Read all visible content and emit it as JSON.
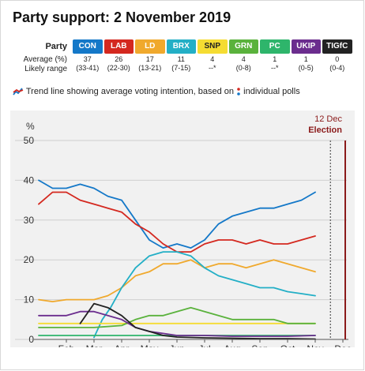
{
  "title": "Party support: 2 November 2019",
  "table": {
    "row_party_label": "Party",
    "row_average_label": "Average (%)",
    "row_range_label": "Likely range",
    "parties": [
      {
        "name": "CON",
        "color": "#1478c8",
        "average": "37",
        "range": "(33-41)"
      },
      {
        "name": "LAB",
        "color": "#d4281f",
        "average": "26",
        "range": "(22-30)"
      },
      {
        "name": "LD",
        "color": "#f0a92d",
        "average": "17",
        "range": "(13-21)"
      },
      {
        "name": "BRX",
        "color": "#23afc6",
        "average": "11",
        "range": "(7-15)"
      },
      {
        "name": "SNP",
        "color": "#f5dc32",
        "average": "4",
        "range": "--*"
      },
      {
        "name": "GRN",
        "color": "#5ab23c",
        "average": "4",
        "range": "(0-8)"
      },
      {
        "name": "PC",
        "color": "#2eb56b",
        "average": "1",
        "range": "--*"
      },
      {
        "name": "UKIP",
        "color": "#6b2d8e",
        "average": "1",
        "range": "(0-5)"
      },
      {
        "name": "TIGfC",
        "color": "#222222",
        "average": "0",
        "range": "(0-4)"
      }
    ]
  },
  "legend": {
    "text_before": "Trend line showing average voting intention, based on",
    "text_after": "individual polls"
  },
  "chart_data": {
    "type": "line",
    "ylabel": "%",
    "ylim": [
      0,
      50
    ],
    "yticks": [
      0,
      10,
      20,
      30,
      40,
      50
    ],
    "x_labels": [
      "Feb",
      "Mar",
      "Apr",
      "May",
      "Jun",
      "Jul",
      "Aug",
      "Sep",
      "Oct",
      "Nov",
      "Dec"
    ],
    "x_range_months": [
      1,
      12.2
    ],
    "grid": true,
    "election_label_date": "12 Dec",
    "election_label": "Election",
    "election_month": 11.55,
    "series": [
      {
        "name": "CON",
        "color": "#1478c8",
        "points": [
          [
            1,
            40
          ],
          [
            1.5,
            38
          ],
          [
            2,
            38
          ],
          [
            2.5,
            39
          ],
          [
            3,
            38
          ],
          [
            3.5,
            36
          ],
          [
            4,
            35
          ],
          [
            4.5,
            30
          ],
          [
            5,
            25
          ],
          [
            5.5,
            23
          ],
          [
            6,
            24
          ],
          [
            6.5,
            23
          ],
          [
            7,
            25
          ],
          [
            7.5,
            29
          ],
          [
            8,
            31
          ],
          [
            8.5,
            32
          ],
          [
            9,
            33
          ],
          [
            9.5,
            33
          ],
          [
            10,
            34
          ],
          [
            10.5,
            35
          ],
          [
            11,
            37
          ]
        ]
      },
      {
        "name": "LAB",
        "color": "#d4281f",
        "points": [
          [
            1,
            34
          ],
          [
            1.5,
            37
          ],
          [
            2,
            37
          ],
          [
            2.5,
            35
          ],
          [
            3,
            34
          ],
          [
            3.5,
            33
          ],
          [
            4,
            32
          ],
          [
            4.5,
            29
          ],
          [
            5,
            27
          ],
          [
            5.5,
            24
          ],
          [
            6,
            22
          ],
          [
            6.5,
            22
          ],
          [
            7,
            24
          ],
          [
            7.5,
            25
          ],
          [
            8,
            25
          ],
          [
            8.5,
            24
          ],
          [
            9,
            25
          ],
          [
            9.5,
            24
          ],
          [
            10,
            24
          ],
          [
            10.5,
            25
          ],
          [
            11,
            26
          ]
        ]
      },
      {
        "name": "LD",
        "color": "#f0a92d",
        "points": [
          [
            1,
            10
          ],
          [
            1.5,
            9.5
          ],
          [
            2,
            10
          ],
          [
            2.5,
            10
          ],
          [
            3,
            10
          ],
          [
            3.5,
            11
          ],
          [
            4,
            13
          ],
          [
            4.5,
            16
          ],
          [
            5,
            17
          ],
          [
            5.5,
            19
          ],
          [
            6,
            19
          ],
          [
            6.5,
            20
          ],
          [
            7,
            18
          ],
          [
            7.5,
            19
          ],
          [
            8,
            19
          ],
          [
            8.5,
            18
          ],
          [
            9,
            19
          ],
          [
            9.5,
            20
          ],
          [
            10,
            19
          ],
          [
            10.5,
            18
          ],
          [
            11,
            17
          ]
        ]
      },
      {
        "name": "BRX",
        "color": "#23afc6",
        "points": [
          [
            3,
            0.5
          ],
          [
            3.3,
            5
          ],
          [
            3.6,
            8
          ],
          [
            4,
            13
          ],
          [
            4.5,
            18
          ],
          [
            5,
            21
          ],
          [
            5.5,
            22
          ],
          [
            6,
            22
          ],
          [
            6.5,
            21
          ],
          [
            7,
            18
          ],
          [
            7.5,
            16
          ],
          [
            8,
            15
          ],
          [
            8.5,
            14
          ],
          [
            9,
            13
          ],
          [
            9.5,
            13
          ],
          [
            10,
            12
          ],
          [
            10.5,
            11.5
          ],
          [
            11,
            11
          ]
        ]
      },
      {
        "name": "SNP",
        "color": "#f5dc32",
        "points": [
          [
            1,
            4
          ],
          [
            2,
            4
          ],
          [
            3,
            4
          ],
          [
            4,
            4
          ],
          [
            5,
            4
          ],
          [
            6,
            4
          ],
          [
            7,
            4
          ],
          [
            8,
            4
          ],
          [
            9,
            4
          ],
          [
            10,
            4
          ],
          [
            11,
            4
          ]
        ]
      },
      {
        "name": "GRN",
        "color": "#5ab23c",
        "points": [
          [
            1,
            3
          ],
          [
            2,
            3
          ],
          [
            3,
            3
          ],
          [
            4,
            3.5
          ],
          [
            4.5,
            5
          ],
          [
            5,
            6
          ],
          [
            5.5,
            6
          ],
          [
            6,
            7
          ],
          [
            6.5,
            8
          ],
          [
            7,
            7
          ],
          [
            7.5,
            6
          ],
          [
            8,
            5
          ],
          [
            8.5,
            5
          ],
          [
            9,
            5
          ],
          [
            9.5,
            5
          ],
          [
            10,
            4
          ],
          [
            10.5,
            4
          ],
          [
            11,
            4
          ]
        ]
      },
      {
        "name": "PC",
        "color": "#2eb56b",
        "points": [
          [
            1,
            1
          ],
          [
            3,
            1
          ],
          [
            5,
            1
          ],
          [
            7,
            1
          ],
          [
            9,
            1
          ],
          [
            11,
            1
          ]
        ]
      },
      {
        "name": "UKIP",
        "color": "#6b2d8e",
        "points": [
          [
            1,
            6
          ],
          [
            1.5,
            6
          ],
          [
            2,
            6
          ],
          [
            2.5,
            7
          ],
          [
            3,
            7
          ],
          [
            3.5,
            6
          ],
          [
            4,
            5
          ],
          [
            4.5,
            3
          ],
          [
            5,
            2
          ],
          [
            5.5,
            1.5
          ],
          [
            6,
            1
          ],
          [
            7,
            1
          ],
          [
            8,
            0.8
          ],
          [
            9,
            0.8
          ],
          [
            10,
            0.8
          ],
          [
            11,
            1
          ]
        ]
      },
      {
        "name": "TIGfC",
        "color": "#222222",
        "points": [
          [
            2.5,
            4
          ],
          [
            3,
            9
          ],
          [
            3.5,
            8
          ],
          [
            4,
            6
          ],
          [
            4.5,
            3
          ],
          [
            5,
            2
          ],
          [
            5.5,
            1
          ],
          [
            6,
            0.6
          ],
          [
            7,
            0.4
          ],
          [
            8,
            0.3
          ],
          [
            9,
            0.2
          ],
          [
            10,
            0.2
          ],
          [
            11,
            0.1
          ]
        ]
      }
    ]
  }
}
